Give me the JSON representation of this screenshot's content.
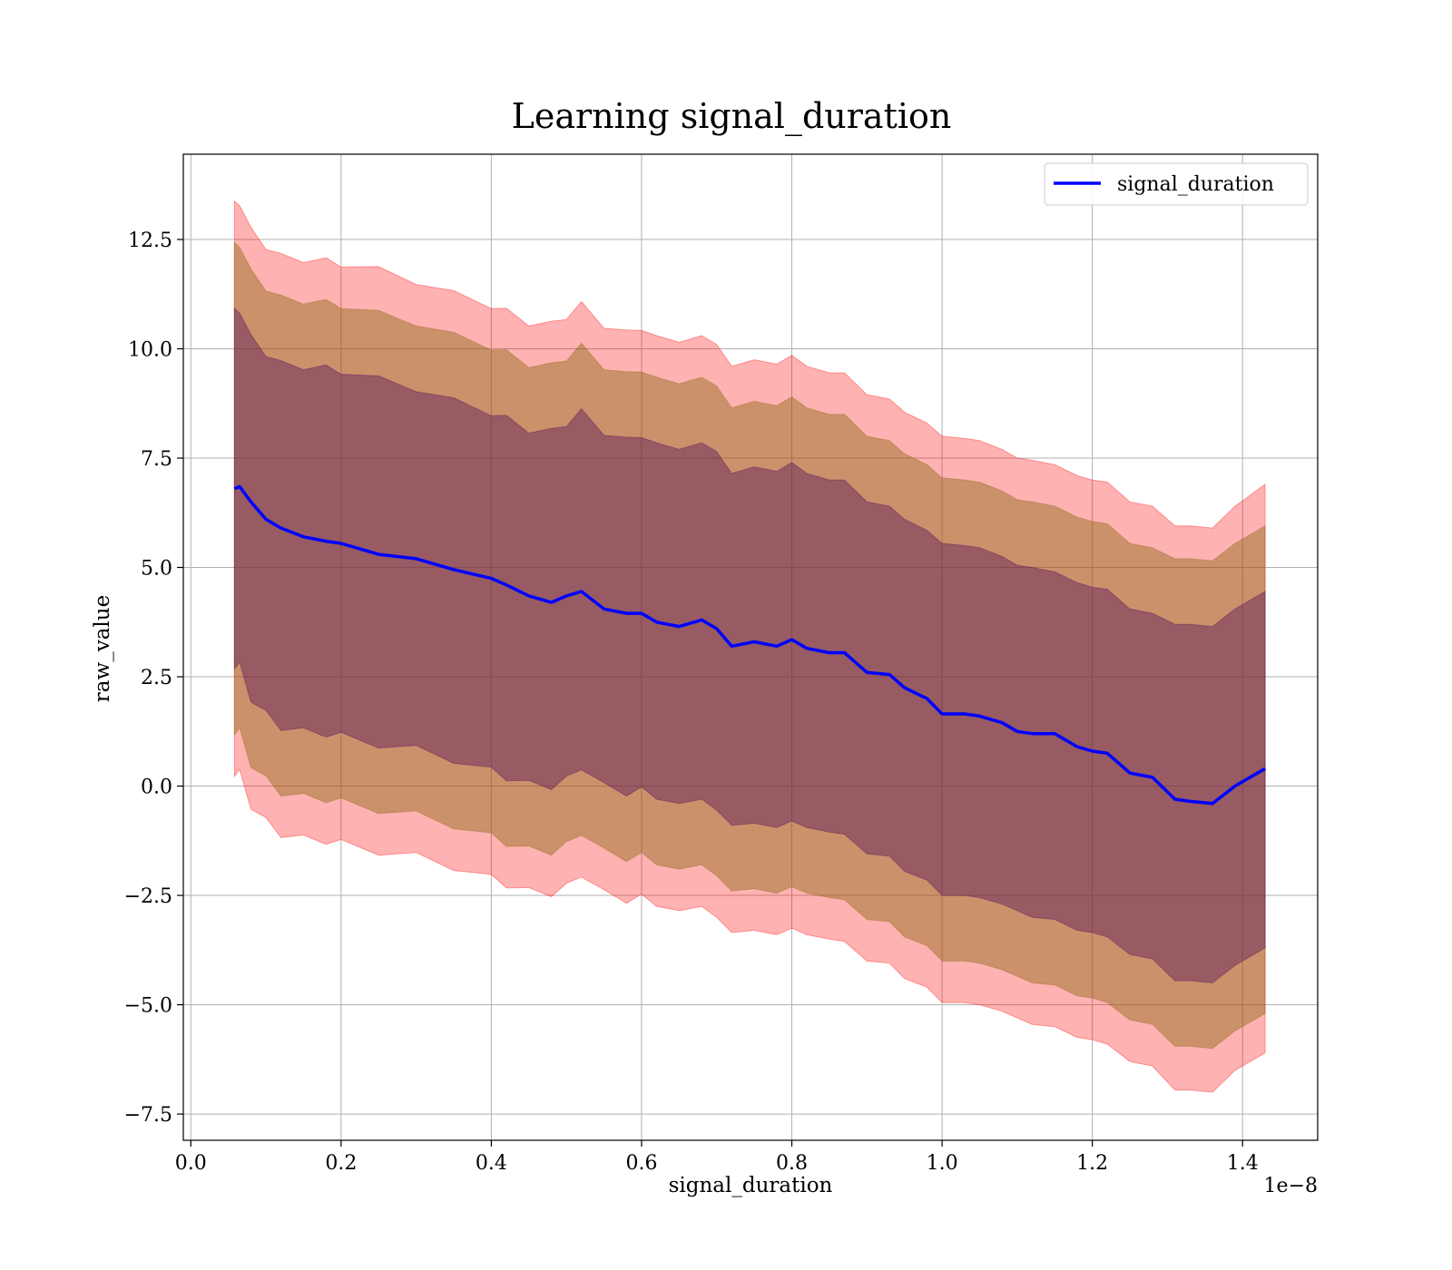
{
  "chart_data": {
    "type": "line",
    "title": "Learning signal_duration",
    "xlabel": "signal_duration",
    "ylabel": "raw_value",
    "x_offset_label": "1e−8",
    "xlim": [
      -0.01,
      1.5
    ],
    "ylim": [
      -8.1,
      14.45
    ],
    "x_ticks": [
      0.0,
      0.2,
      0.4,
      0.6,
      0.8,
      1.0,
      1.2,
      1.4
    ],
    "x_tick_labels": [
      "0.0",
      "0.2",
      "0.4",
      "0.6",
      "0.8",
      "1.0",
      "1.2",
      "1.4"
    ],
    "y_ticks": [
      -7.5,
      -5.0,
      -2.5,
      0.0,
      2.5,
      5.0,
      7.5,
      10.0,
      12.5
    ],
    "y_tick_labels": [
      "−7.5",
      "−5.0",
      "−2.5",
      "0.0",
      "2.5",
      "5.0",
      "7.5",
      "10.0",
      "12.5"
    ],
    "grid": true,
    "legend_position": "top-right",
    "colors": {
      "line": "#0000ff",
      "band_outer": "#ff0000",
      "band_middle": "#8b6914",
      "band_inner": "#4b0a5a"
    },
    "series": [
      {
        "name": "signal_duration",
        "x": [
          0.058,
          0.065,
          0.08,
          0.1,
          0.12,
          0.15,
          0.18,
          0.2,
          0.25,
          0.3,
          0.35,
          0.4,
          0.42,
          0.45,
          0.48,
          0.5,
          0.52,
          0.55,
          0.58,
          0.6,
          0.62,
          0.65,
          0.68,
          0.7,
          0.72,
          0.75,
          0.78,
          0.8,
          0.82,
          0.85,
          0.87,
          0.9,
          0.93,
          0.95,
          0.98,
          1.0,
          1.03,
          1.05,
          1.08,
          1.1,
          1.12,
          1.15,
          1.18,
          1.2,
          1.22,
          1.25,
          1.28,
          1.31,
          1.33,
          1.36,
          1.39,
          1.43
        ],
        "y": [
          6.8,
          6.85,
          6.5,
          6.1,
          5.9,
          5.7,
          5.6,
          5.55,
          5.3,
          5.2,
          4.95,
          4.75,
          4.6,
          4.35,
          4.2,
          4.35,
          4.45,
          4.05,
          3.95,
          3.95,
          3.75,
          3.65,
          3.8,
          3.6,
          3.2,
          3.3,
          3.2,
          3.35,
          3.15,
          3.05,
          3.05,
          2.6,
          2.55,
          2.25,
          2.0,
          1.65,
          1.65,
          1.6,
          1.45,
          1.25,
          1.2,
          1.2,
          0.9,
          0.8,
          0.75,
          0.3,
          0.2,
          -0.3,
          -0.35,
          -0.4,
          0.0,
          0.4
        ]
      },
      {
        "name": "outer_band",
        "upper": [
          13.3,
          13.35,
          12.7,
          12.35,
          12.1,
          12.05,
          12.0,
          11.95,
          11.8,
          11.55,
          11.25,
          11.0,
          10.85,
          10.6,
          10.55,
          10.75,
          11.0,
          10.55,
          10.35,
          10.5,
          10.3,
          10.15,
          10.3,
          10.1,
          9.6,
          9.75,
          9.65,
          9.85,
          9.6,
          9.45,
          9.45,
          8.95,
          8.85,
          8.55,
          8.3,
          8.0,
          7.95,
          7.9,
          7.7,
          7.5,
          7.45,
          7.35,
          7.1,
          7.0,
          6.95,
          6.5,
          6.4,
          5.95,
          5.95,
          5.9,
          6.4,
          6.9
        ],
        "lower": [
          0.3,
          0.3,
          -0.45,
          -0.8,
          -1.1,
          -1.2,
          -1.25,
          -1.3,
          -1.5,
          -1.6,
          -1.85,
          -2.1,
          -2.25,
          -2.4,
          -2.45,
          -2.3,
          -2.0,
          -2.45,
          -2.6,
          -2.55,
          -2.75,
          -2.85,
          -2.75,
          -3.0,
          -3.35,
          -3.3,
          -3.4,
          -3.25,
          -3.4,
          -3.5,
          -3.55,
          -4.0,
          -4.05,
          -4.4,
          -4.6,
          -4.95,
          -4.95,
          -5.0,
          -5.15,
          -5.3,
          -5.45,
          -5.5,
          -5.75,
          -5.8,
          -5.9,
          -6.3,
          -6.4,
          -6.95,
          -6.95,
          -7.0,
          -6.5,
          -6.1
        ]
      },
      {
        "name": "middle_band",
        "upper": [
          12.35,
          12.4,
          11.75,
          11.4,
          11.15,
          11.1,
          11.05,
          11.0,
          10.8,
          10.6,
          10.3,
          10.05,
          9.9,
          9.65,
          9.6,
          9.8,
          10.05,
          9.6,
          9.4,
          9.55,
          9.35,
          9.2,
          9.35,
          9.15,
          8.65,
          8.8,
          8.7,
          8.9,
          8.65,
          8.5,
          8.5,
          8.0,
          7.9,
          7.6,
          7.35,
          7.05,
          7.0,
          6.95,
          6.75,
          6.55,
          6.5,
          6.4,
          6.15,
          6.05,
          6.0,
          5.55,
          5.45,
          5.2,
          5.2,
          5.15,
          5.55,
          5.95
        ],
        "lower": [
          1.25,
          1.25,
          0.5,
          0.15,
          -0.15,
          -0.25,
          -0.3,
          -0.35,
          -0.55,
          -0.65,
          -0.9,
          -1.15,
          -1.3,
          -1.45,
          -1.5,
          -1.35,
          -1.05,
          -1.5,
          -1.65,
          -1.6,
          -1.8,
          -1.9,
          -1.8,
          -2.05,
          -2.4,
          -2.35,
          -2.45,
          -2.3,
          -2.45,
          -2.55,
          -2.6,
          -3.05,
          -3.1,
          -3.45,
          -3.65,
          -4.0,
          -4.0,
          -4.05,
          -4.2,
          -4.35,
          -4.5,
          -4.55,
          -4.8,
          -4.85,
          -4.95,
          -5.35,
          -5.45,
          -5.95,
          -5.95,
          -6.0,
          -5.6,
          -5.2
        ]
      },
      {
        "name": "inner_band",
        "upper": [
          10.85,
          10.9,
          10.25,
          9.9,
          9.65,
          9.6,
          9.55,
          9.5,
          9.3,
          9.1,
          8.8,
          8.55,
          8.4,
          8.15,
          8.1,
          8.3,
          8.55,
          8.1,
          7.9,
          8.05,
          7.85,
          7.7,
          7.85,
          7.65,
          7.15,
          7.3,
          7.2,
          7.4,
          7.15,
          7.0,
          7.0,
          6.5,
          6.4,
          6.1,
          5.85,
          5.55,
          5.5,
          5.45,
          5.25,
          5.05,
          5.0,
          4.9,
          4.65,
          4.55,
          4.5,
          4.05,
          3.95,
          3.7,
          3.7,
          3.65,
          4.05,
          4.45
        ],
        "lower": [
          2.75,
          2.75,
          2.0,
          1.65,
          1.35,
          1.25,
          1.2,
          1.15,
          0.95,
          0.85,
          0.6,
          0.35,
          0.2,
          0.05,
          0.0,
          0.15,
          0.45,
          0.0,
          -0.15,
          -0.1,
          -0.3,
          -0.4,
          -0.3,
          -0.55,
          -0.9,
          -0.85,
          -0.95,
          -0.8,
          -0.95,
          -1.05,
          -1.1,
          -1.55,
          -1.6,
          -1.95,
          -2.15,
          -2.5,
          -2.5,
          -2.55,
          -2.7,
          -2.85,
          -3.0,
          -3.05,
          -3.3,
          -3.35,
          -3.45,
          -3.85,
          -3.95,
          -4.45,
          -4.45,
          -4.5,
          -4.1,
          -3.7
        ]
      }
    ]
  }
}
